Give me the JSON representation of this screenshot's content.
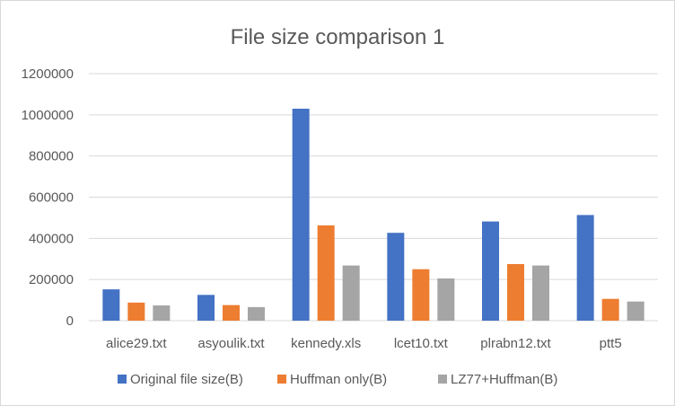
{
  "chart_data": {
    "type": "bar",
    "title": "File size comparison 1",
    "xlabel": "",
    "ylabel": "",
    "categories": [
      "alice29.txt",
      "asyoulik.txt",
      "kennedy.xls",
      "lcet10.txt",
      "plrabn12.txt",
      "ptt5"
    ],
    "series": [
      {
        "name": "Original file size(B)",
        "color": "#4472c4",
        "values": [
          152089,
          125179,
          1029744,
          426754,
          481861,
          513216
        ]
      },
      {
        "name": "Huffman only(B)",
        "color": "#ed7d31",
        "values": [
          87800,
          75700,
          463000,
          250000,
          275000,
          106000
        ]
      },
      {
        "name": "LZ77+Huffman(B)",
        "color": "#a5a5a5",
        "values": [
          74000,
          66000,
          268000,
          205000,
          268000,
          93000
        ]
      }
    ],
    "ylim": [
      0,
      1200000
    ],
    "yticks": [
      0,
      200000,
      400000,
      600000,
      800000,
      1000000,
      1200000
    ],
    "grid": true,
    "legend": "bottom"
  }
}
